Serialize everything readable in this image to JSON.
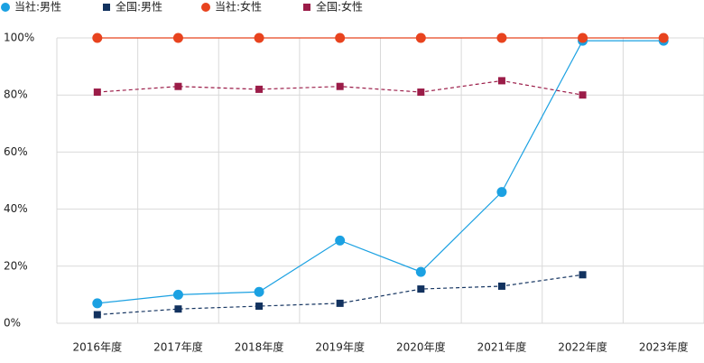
{
  "chart_data": {
    "type": "line",
    "categories": [
      "2016年度",
      "2017年度",
      "2018年度",
      "2019年度",
      "2020年度",
      "2021年度",
      "2022年度",
      "2023年度"
    ],
    "series": [
      {
        "name": "当社:男性",
        "color": "#1ba1e2",
        "marker": "circle",
        "line": "solid",
        "values": [
          7,
          10,
          11,
          29,
          18,
          46,
          99,
          99
        ]
      },
      {
        "name": "全国:男性",
        "color": "#12325f",
        "marker": "square",
        "line": "dashed",
        "values": [
          3,
          5,
          6,
          7,
          12,
          13,
          17,
          null
        ]
      },
      {
        "name": "当社:女性",
        "color": "#e8431e",
        "marker": "circle",
        "line": "solid",
        "values": [
          100,
          100,
          100,
          100,
          100,
          100,
          100,
          100
        ]
      },
      {
        "name": "全国:女性",
        "color": "#9b1c48",
        "marker": "square",
        "line": "dashed",
        "values": [
          81,
          83,
          82,
          83,
          81,
          85,
          80,
          null
        ]
      }
    ],
    "ylim": [
      0,
      100
    ],
    "yticks": [
      {
        "value": 0,
        "label": "0%"
      },
      {
        "value": 20,
        "label": "20%"
      },
      {
        "value": 40,
        "label": "40%"
      },
      {
        "value": 60,
        "label": "60%"
      },
      {
        "value": 80,
        "label": "80%"
      },
      {
        "value": 100,
        "label": "100%"
      }
    ],
    "grid": true,
    "legend": "top-left"
  }
}
